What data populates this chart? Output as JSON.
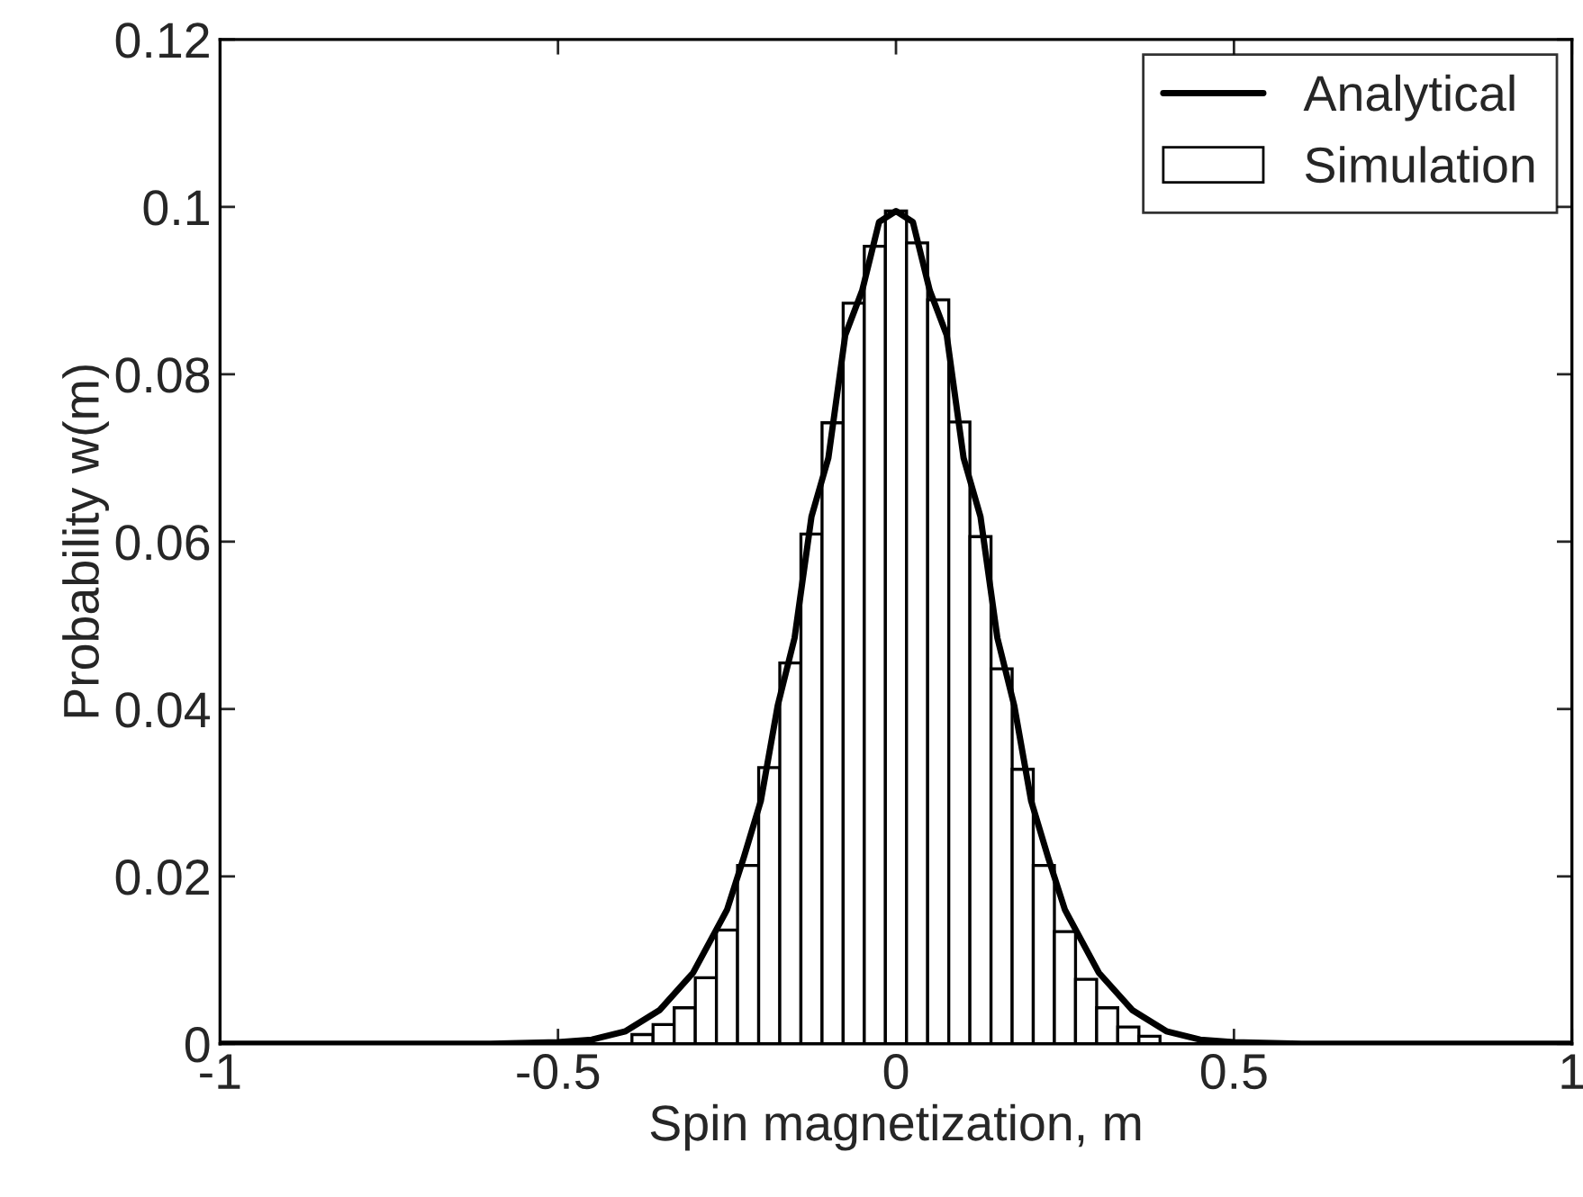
{
  "chart_data": {
    "type": "histogram",
    "xlabel": "Spin magnetization, m",
    "ylabel": "Probability w(m)",
    "xlim": [
      -1,
      1
    ],
    "xticks": [
      -1,
      -0.5,
      0,
      0.5,
      1
    ],
    "ylim": [
      0,
      0.12
    ],
    "yticks": [
      0,
      0.02,
      0.04,
      0.06,
      0.08,
      0.1,
      0.12
    ],
    "grid": false,
    "legend": "top right",
    "series": [
      {
        "type": "line",
        "name": "Analytical",
        "color": "#000000",
        "x": [
          -1,
          -0.6,
          -0.5,
          -0.45,
          -0.4,
          -0.35,
          -0.3,
          -0.25,
          -0.225,
          -0.2,
          -0.175,
          -0.15,
          -0.125,
          -0.1,
          -0.075,
          -0.05,
          -0.025,
          0,
          0.025,
          0.05,
          0.075,
          0.1,
          0.125,
          0.15,
          0.175,
          0.2,
          0.225,
          0.25,
          0.3,
          0.35,
          0.4,
          0.45,
          0.5,
          0.6,
          1
        ],
        "values": [
          0,
          0,
          0.0002,
          0.0005,
          0.0015,
          0.004,
          0.0085,
          0.016,
          0.0223,
          0.029,
          0.0404,
          0.0485,
          0.063,
          0.07,
          0.0847,
          0.09,
          0.0982,
          0.0995,
          0.0982,
          0.09,
          0.0847,
          0.07,
          0.063,
          0.0485,
          0.0404,
          0.029,
          0.0223,
          0.016,
          0.0085,
          0.004,
          0.0015,
          0.0005,
          0.0002,
          0,
          0
        ]
      },
      {
        "name": "Simulation",
        "color": "#ffffff",
        "bins": [
          -0.390625,
          -0.359375,
          -0.328125,
          -0.296875,
          -0.265625,
          -0.234375,
          -0.203125,
          -0.171875,
          -0.140625,
          -0.109375,
          -0.078125,
          -0.046875,
          -0.015625,
          0.015625,
          0.046875,
          0.078125,
          0.109375,
          0.140625,
          0.171875,
          0.203125,
          0.234375,
          0.265625,
          0.296875,
          0.328125,
          0.359375,
          0.390625
        ],
        "values": [
          0.0011,
          0.0023,
          0.0043,
          0.0079,
          0.0136,
          0.0213,
          0.033,
          0.0455,
          0.0609,
          0.0742,
          0.0885,
          0.0953,
          0.0995,
          0.0957,
          0.0889,
          0.0743,
          0.0606,
          0.0448,
          0.0328,
          0.0213,
          0.0134,
          0.0077,
          0.0043,
          0.002,
          0.0009
        ]
      }
    ]
  }
}
